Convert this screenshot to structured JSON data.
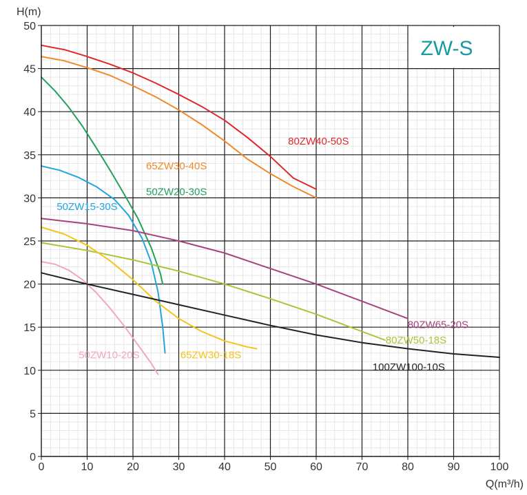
{
  "chart_data": {
    "type": "line",
    "title": "ZW-S",
    "title_color": "#1a9aa0",
    "xlabel": "Q(m³/h)",
    "ylabel": "H(m)",
    "xlim": [
      0,
      100
    ],
    "ylim": [
      0,
      50
    ],
    "x_ticks": [
      0,
      10,
      20,
      30,
      40,
      50,
      60,
      70,
      80,
      90,
      100
    ],
    "y_ticks": [
      0,
      5,
      10,
      15,
      20,
      25,
      30,
      35,
      40,
      45,
      50
    ],
    "grid": true,
    "series": [
      {
        "name": "80ZW40-50S",
        "color": "#e0262b",
        "label_at": [
          60.5,
          36.6
        ],
        "label_anchor": "middle",
        "points": [
          [
            0,
            47.7
          ],
          [
            5,
            47.2
          ],
          [
            10,
            46.4
          ],
          [
            15,
            45.5
          ],
          [
            20,
            44.5
          ],
          [
            25,
            43.3
          ],
          [
            30,
            42.0
          ],
          [
            35,
            40.6
          ],
          [
            40,
            39.0
          ],
          [
            45,
            37.0
          ],
          [
            50,
            34.8
          ],
          [
            55,
            32.3
          ],
          [
            60,
            31.0
          ]
        ]
      },
      {
        "name": "65ZW30-40S",
        "color": "#ef8a2a",
        "label_at": [
          29.5,
          33.7
        ],
        "label_anchor": "middle",
        "points": [
          [
            0,
            46.4
          ],
          [
            5,
            45.9
          ],
          [
            10,
            45.1
          ],
          [
            15,
            44.2
          ],
          [
            20,
            43.0
          ],
          [
            25,
            41.7
          ],
          [
            30,
            40.2
          ],
          [
            35,
            38.5
          ],
          [
            40,
            36.6
          ],
          [
            45,
            34.5
          ],
          [
            50,
            32.8
          ],
          [
            55,
            31.3
          ],
          [
            60,
            30.0
          ]
        ]
      },
      {
        "name": "50ZW20-30S",
        "color": "#23a05c",
        "label_at": [
          29.5,
          30.7
        ],
        "label_anchor": "middle",
        "points": [
          [
            0,
            44.0
          ],
          [
            3,
            42.4
          ],
          [
            6,
            40.5
          ],
          [
            9,
            38.3
          ],
          [
            12,
            35.8
          ],
          [
            15,
            33.2
          ],
          [
            18,
            30.5
          ],
          [
            21,
            27.7
          ],
          [
            24,
            24.2
          ],
          [
            26,
            21.2
          ],
          [
            26.5,
            20.0
          ]
        ]
      },
      {
        "name": "50ZW15-30S",
        "color": "#22a4df",
        "label_at": [
          10,
          29.0
        ],
        "label_anchor": "middle",
        "points": [
          [
            0,
            33.7
          ],
          [
            4,
            33.2
          ],
          [
            8,
            32.4
          ],
          [
            12,
            31.3
          ],
          [
            16,
            29.8
          ],
          [
            19,
            28.0
          ],
          [
            22,
            25.3
          ],
          [
            24,
            22.5
          ],
          [
            25.5,
            19.0
          ],
          [
            26.5,
            15.0
          ],
          [
            27,
            12.0
          ]
        ]
      },
      {
        "name": "80ZW65-20S",
        "color": "#a6427e",
        "label_at": [
          86.6,
          15.3
        ],
        "label_anchor": "middle",
        "points": [
          [
            0,
            27.6
          ],
          [
            10,
            27.0
          ],
          [
            20,
            26.2
          ],
          [
            30,
            25.0
          ],
          [
            40,
            23.6
          ],
          [
            50,
            21.8
          ],
          [
            60,
            20.0
          ],
          [
            70,
            18.0
          ],
          [
            75,
            17.0
          ],
          [
            80,
            16.0
          ]
        ]
      },
      {
        "name": "80ZW50-18S",
        "color": "#a9c535",
        "label_at": [
          81.8,
          13.5
        ],
        "label_anchor": "middle",
        "points": [
          [
            0,
            24.8
          ],
          [
            10,
            23.9
          ],
          [
            20,
            22.8
          ],
          [
            30,
            21.5
          ],
          [
            40,
            20.0
          ],
          [
            50,
            18.3
          ],
          [
            60,
            16.5
          ],
          [
            70,
            14.5
          ],
          [
            75,
            13.5
          ]
        ]
      },
      {
        "name": "65ZW30-18S",
        "color": "#f6c419",
        "label_at": [
          37,
          11.8
        ],
        "label_anchor": "middle",
        "points": [
          [
            0,
            26.6
          ],
          [
            5,
            25.8
          ],
          [
            10,
            24.5
          ],
          [
            15,
            22.7
          ],
          [
            20,
            20.5
          ],
          [
            25,
            18.0
          ],
          [
            30,
            16.0
          ],
          [
            35,
            14.5
          ],
          [
            40,
            13.4
          ],
          [
            45,
            12.7
          ],
          [
            47,
            12.5
          ]
        ]
      },
      {
        "name": "50ZW10-20S",
        "color": "#f2a6c0",
        "label_at": [
          14.8,
          11.8
        ],
        "label_anchor": "middle",
        "points": [
          [
            0,
            22.6
          ],
          [
            3,
            22.3
          ],
          [
            6,
            21.6
          ],
          [
            9,
            20.5
          ],
          [
            12,
            19.0
          ],
          [
            15,
            17.2
          ],
          [
            18,
            15.2
          ],
          [
            21,
            13.0
          ],
          [
            24,
            10.8
          ],
          [
            25.5,
            9.5
          ]
        ]
      },
      {
        "name": "100ZW100-10S",
        "color": "#222222",
        "label_at": [
          80.2,
          10.4
        ],
        "label_anchor": "middle",
        "points": [
          [
            0,
            21.3
          ],
          [
            10,
            20.0
          ],
          [
            20,
            18.8
          ],
          [
            30,
            17.6
          ],
          [
            40,
            16.4
          ],
          [
            50,
            15.2
          ],
          [
            60,
            14.1
          ],
          [
            70,
            13.2
          ],
          [
            80,
            12.5
          ],
          [
            90,
            11.9
          ],
          [
            100,
            11.5
          ]
        ]
      }
    ]
  }
}
